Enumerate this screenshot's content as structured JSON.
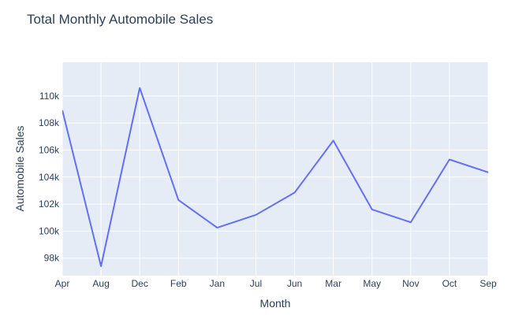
{
  "chart_data": {
    "type": "line",
    "title": "Total Monthly Automobile Sales",
    "xlabel": "Month",
    "ylabel": "Automobile Sales",
    "categories": [
      "Apr",
      "Aug",
      "Dec",
      "Feb",
      "Jan",
      "Jul",
      "Jun",
      "Mar",
      "May",
      "Nov",
      "Oct",
      "Sep"
    ],
    "series": [
      {
        "values": [
          108950,
          97400,
          110600,
          102300,
          100250,
          101200,
          102850,
          106700,
          101600,
          100650,
          105300,
          104350
        ]
      }
    ],
    "ylim": [
      96700,
      112500
    ],
    "yticks": [
      98000,
      100000,
      102000,
      104000,
      106000,
      108000,
      110000
    ],
    "ytick_labels": [
      "98k",
      "100k",
      "102k",
      "104k",
      "106k",
      "108k",
      "110k"
    ],
    "grid": true,
    "legend": "none"
  },
  "colors": {
    "plot_background": "#e5ecf6",
    "grid": "#ffffff",
    "line": "#636efa",
    "text": "#2a3f5f"
  }
}
